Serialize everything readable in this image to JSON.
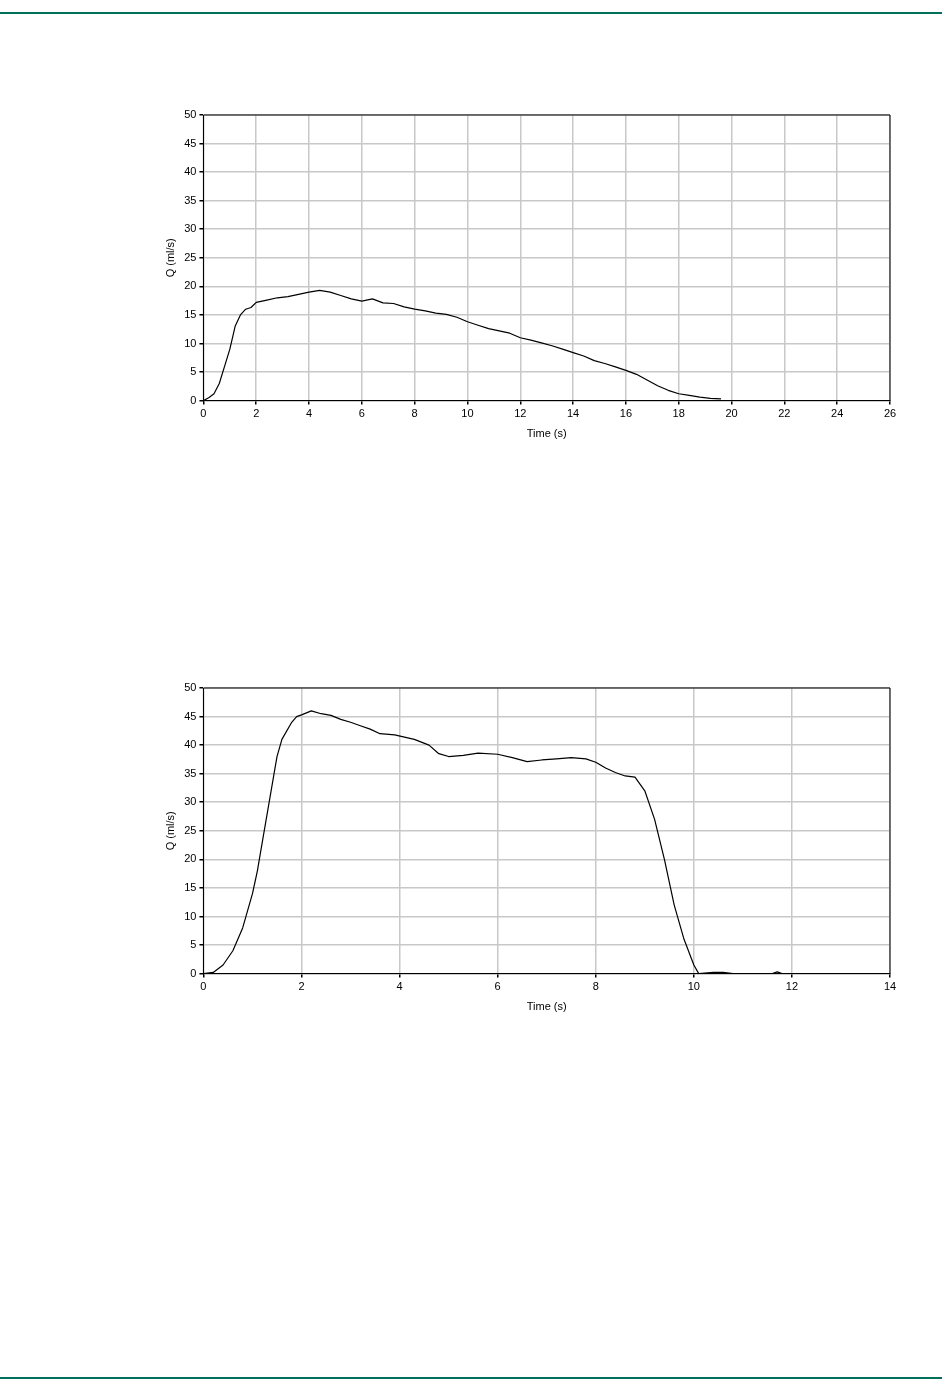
{
  "chart_data": [
    {
      "type": "line",
      "xlabel": "Time (s)",
      "ylabel": "Q (ml/s)",
      "xlim": [
        0,
        26
      ],
      "xticks": [
        0,
        2,
        4,
        6,
        8,
        10,
        12,
        14,
        16,
        18,
        20,
        22,
        24,
        26
      ],
      "ylim": [
        0,
        50
      ],
      "yticks": [
        0,
        5,
        10,
        15,
        20,
        25,
        30,
        35,
        40,
        45,
        50
      ],
      "grid": true,
      "legend": false,
      "marker": "none",
      "line_style": "solid",
      "series": [
        {
          "color": "#000000",
          "x": [
            0,
            0.2,
            0.4,
            0.6,
            0.8,
            1.0,
            1.2,
            1.4,
            1.6,
            1.8,
            2.0,
            2.4,
            2.8,
            3.2,
            3.6,
            4.0,
            4.4,
            4.8,
            5.2,
            5.6,
            6.0,
            6.4,
            6.8,
            7.2,
            7.6,
            8.0,
            8.4,
            8.8,
            9.2,
            9.6,
            10,
            10.4,
            10.8,
            11.2,
            11.6,
            12,
            12.4,
            12.8,
            13.2,
            13.6,
            14,
            14.4,
            14.8,
            15.2,
            15.6,
            16,
            16.4,
            16.8,
            17.2,
            17.6,
            18,
            18.4,
            18.8,
            19.2,
            19.6
          ],
          "values": [
            0,
            0.5,
            1.2,
            3,
            6,
            9,
            13,
            15,
            16,
            16.3,
            17.2,
            17.6,
            18,
            18.2,
            18.6,
            19,
            19.3,
            19,
            18.4,
            17.8,
            17.4,
            17.8,
            17.1,
            17,
            16.4,
            16,
            15.7,
            15.3,
            15.1,
            14.6,
            13.8,
            13.2,
            12.6,
            12.2,
            11.8,
            11,
            10.6,
            10.1,
            9.6,
            9,
            8.4,
            7.8,
            7,
            6.5,
            5.9,
            5.3,
            4.6,
            3.6,
            2.6,
            1.8,
            1.2,
            0.9,
            0.6,
            0.4,
            0.3
          ]
        }
      ]
    },
    {
      "type": "line",
      "xlabel": "Time (s)",
      "ylabel": "Q (ml/s)",
      "xlim": [
        0,
        14
      ],
      "xticks": [
        0,
        2,
        4,
        6,
        8,
        10,
        12,
        14
      ],
      "ylim": [
        0,
        50
      ],
      "yticks": [
        0,
        5,
        10,
        15,
        20,
        25,
        30,
        35,
        40,
        45,
        50
      ],
      "grid": true,
      "legend": false,
      "marker": "none",
      "line_style": "solid",
      "series": [
        {
          "color": "#000000",
          "x": [
            0,
            0.2,
            0.4,
            0.6,
            0.8,
            1.0,
            1.1,
            1.2,
            1.3,
            1.4,
            1.5,
            1.6,
            1.8,
            1.9,
            2.0,
            2.2,
            2.4,
            2.6,
            2.8,
            3.0,
            3.2,
            3.4,
            3.6,
            3.9,
            4.1,
            4.3,
            4.6,
            4.8,
            5.0,
            5.3,
            5.6,
            6.0,
            6.3,
            6.6,
            6.9,
            7.2,
            7.5,
            7.8,
            8.0,
            8.2,
            8.4,
            8.6,
            8.8,
            9.0,
            9.2,
            9.4,
            9.6,
            9.8,
            10.0,
            10.1,
            10.4,
            10.6,
            10.8,
            11.6,
            11.7,
            11.8
          ],
          "values": [
            0,
            0.2,
            1.5,
            4,
            8,
            14,
            18,
            23,
            28,
            33,
            38,
            41,
            44,
            45,
            45.3,
            46,
            45.5,
            45.2,
            44.5,
            44,
            43.4,
            42.8,
            42,
            41.8,
            41.4,
            41,
            40,
            38.5,
            38,
            38.2,
            38.6,
            38.4,
            37.8,
            37.1,
            37.4,
            37.6,
            37.8,
            37.6,
            37,
            36,
            35.2,
            34.6,
            34.4,
            32,
            27,
            20,
            12,
            6,
            1.5,
            0,
            0.2,
            0.2,
            0,
            0,
            0.3,
            0
          ]
        }
      ]
    }
  ]
}
